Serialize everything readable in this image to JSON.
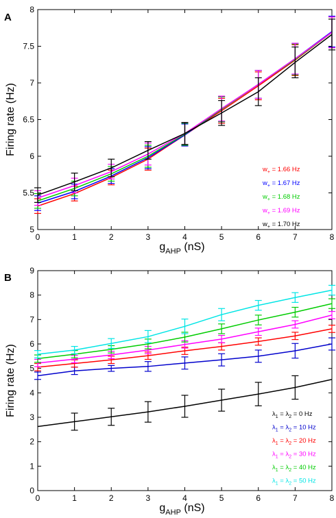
{
  "panels": [
    "A",
    "B"
  ],
  "chart_data": [
    {
      "type": "line",
      "panel": "A",
      "xlabel": "g",
      "xlabel_sub": "AHP",
      "xlabel_unit": " (nS)",
      "ylabel": "Firing rate  (Hz)",
      "xlim": [
        0,
        8
      ],
      "ylim": [
        5,
        8
      ],
      "xticks": [
        "0",
        "1",
        "2",
        "3",
        "4",
        "5",
        "6",
        "7",
        "8"
      ],
      "yticks": [
        "5",
        "5.5",
        "6",
        "6.5",
        "7",
        "7.5",
        "8"
      ],
      "legend_position": "right",
      "x": [
        0,
        1,
        2,
        3,
        4,
        5,
        6,
        7,
        8
      ],
      "series": [
        {
          "name": "w+ = 1.66 Hz",
          "label_pre": "w",
          "label_sub": "+",
          "label_post": " = 1.66 Hz",
          "color": "#ff0000",
          "values": [
            5.32,
            5.49,
            5.71,
            5.96,
            6.29,
            6.62,
            6.96,
            7.31,
            7.69
          ],
          "err": [
            0.1,
            0.1,
            0.1,
            0.15,
            0.15,
            0.17,
            0.19,
            0.21,
            0.21
          ]
        },
        {
          "name": "w+ = 1.67 Hz",
          "label_pre": "w",
          "label_sub": "+",
          "label_post": " = 1.67 Hz",
          "color": "#0000ff",
          "values": [
            5.36,
            5.52,
            5.73,
            5.98,
            6.29,
            6.64,
            6.98,
            7.33,
            7.7
          ],
          "err": [
            0.1,
            0.1,
            0.1,
            0.15,
            0.15,
            0.17,
            0.19,
            0.21,
            0.21
          ]
        },
        {
          "name": "w+ = 1.68 Hz",
          "label_pre": "w",
          "label_sub": "+",
          "label_post": " = 1.68 Hz",
          "color": "#00cc00",
          "values": [
            5.39,
            5.56,
            5.76,
            6.0,
            6.3,
            6.64,
            6.98,
            7.32,
            7.69
          ],
          "err": [
            0.1,
            0.1,
            0.1,
            0.15,
            0.15,
            0.17,
            0.19,
            0.21,
            0.21
          ]
        },
        {
          "name": "w+ = 1.69 Hz",
          "label_pre": "w",
          "label_sub": "+",
          "label_post": " = 1.69 Hz",
          "color": "#ff00ff",
          "values": [
            5.43,
            5.6,
            5.79,
            6.03,
            6.31,
            6.65,
            6.98,
            7.33,
            7.69
          ],
          "err": [
            0.1,
            0.1,
            0.1,
            0.15,
            0.15,
            0.17,
            0.19,
            0.21,
            0.21
          ]
        },
        {
          "name": "w+ = 1.70 Hz",
          "label_pre": "w",
          "label_sub": "+",
          "label_post": " = 1.70 Hz",
          "color": "#000000",
          "values": [
            5.47,
            5.65,
            5.84,
            6.08,
            6.31,
            6.59,
            6.88,
            7.28,
            7.66
          ],
          "err": [
            0.1,
            0.12,
            0.12,
            0.12,
            0.15,
            0.17,
            0.19,
            0.21,
            0.21
          ]
        }
      ]
    },
    {
      "type": "line",
      "panel": "B",
      "xlabel": "g",
      "xlabel_sub": "AHP",
      "xlabel_unit": " (nS)",
      "ylabel": "Firing rate (Hz)",
      "xlim": [
        0,
        8
      ],
      "ylim": [
        0,
        9
      ],
      "xticks": [
        "0",
        "1",
        "2",
        "3",
        "4",
        "5",
        "6",
        "7",
        "8"
      ],
      "yticks": [
        "0",
        "1",
        "2",
        "3",
        "4",
        "5",
        "6",
        "7",
        "8",
        "9"
      ],
      "legend_position": "bottom-right",
      "x": [
        0,
        1,
        2,
        3,
        4,
        5,
        6,
        7,
        8
      ],
      "series": [
        {
          "name": "λ1 = λ2 = 0 Hz",
          "label_pre": "λ",
          "label_sub": "1",
          "label_mid": " = λ",
          "label_sub2": "2",
          "label_post": " = 0 Hz",
          "color": "#000000",
          "values": [
            2.62,
            2.82,
            3.02,
            3.22,
            3.45,
            3.7,
            3.95,
            4.22,
            4.55
          ],
          "err": [
            0.0,
            0.35,
            0.35,
            0.42,
            0.45,
            0.45,
            0.48,
            0.48,
            0.0
          ]
        },
        {
          "name": "λ1 = λ2 = 10 Hz",
          "label_pre": "λ",
          "label_sub": "1",
          "label_mid": " = λ",
          "label_sub2": "2",
          "label_post": " = 10 Hz",
          "color": "#0000cc",
          "values": [
            4.7,
            4.9,
            5.0,
            5.08,
            5.22,
            5.35,
            5.5,
            5.72,
            6.0
          ],
          "err": [
            0.15,
            0.15,
            0.12,
            0.2,
            0.25,
            0.25,
            0.25,
            0.3,
            0.25
          ]
        },
        {
          "name": "λ1 = λ2 = 20 Hz",
          "label_pre": "λ",
          "label_sub": "1",
          "label_mid": " = λ",
          "label_sub2": "2",
          "label_post": " = 20 Hz",
          "color": "#ff0000",
          "values": [
            5.05,
            5.2,
            5.35,
            5.52,
            5.72,
            5.9,
            6.1,
            6.33,
            6.62
          ],
          "err": [
            0.15,
            0.15,
            0.15,
            0.15,
            0.15,
            0.15,
            0.15,
            0.15,
            0.15
          ]
        },
        {
          "name": "λ1 = λ2 = 30 Hz",
          "label_pre": "λ",
          "label_sub": "1",
          "label_mid": " = λ",
          "label_sub2": "2",
          "label_post": " = 30 Hz",
          "color": "#ff00ff",
          "values": [
            5.22,
            5.38,
            5.55,
            5.75,
            5.98,
            6.2,
            6.5,
            6.8,
            7.18
          ],
          "err": [
            0.15,
            0.15,
            0.15,
            0.15,
            0.15,
            0.15,
            0.15,
            0.15,
            0.15
          ]
        },
        {
          "name": "λ1 = λ2 = 40 Hz",
          "label_pre": "λ",
          "label_sub": "1",
          "label_mid": " = λ",
          "label_sub2": "2",
          "label_post": " = 40 Hz",
          "color": "#00cc00",
          "values": [
            5.4,
            5.58,
            5.78,
            6.0,
            6.28,
            6.62,
            6.98,
            7.3,
            7.65
          ],
          "err": [
            0.15,
            0.15,
            0.15,
            0.2,
            0.2,
            0.2,
            0.2,
            0.2,
            0.2
          ]
        },
        {
          "name": "λ1 = λ2 = 50 Hz",
          "label_pre": "λ",
          "label_sub": "1",
          "label_mid": " = λ",
          "label_sub2": "2",
          "label_post": " = 50 Hz",
          "color": "#00e5e5",
          "values": [
            5.58,
            5.75,
            6.02,
            6.3,
            6.72,
            7.2,
            7.58,
            7.9,
            8.2
          ],
          "err": [
            0.15,
            0.15,
            0.2,
            0.25,
            0.3,
            0.25,
            0.2,
            0.2,
            0.2
          ]
        }
      ]
    }
  ]
}
